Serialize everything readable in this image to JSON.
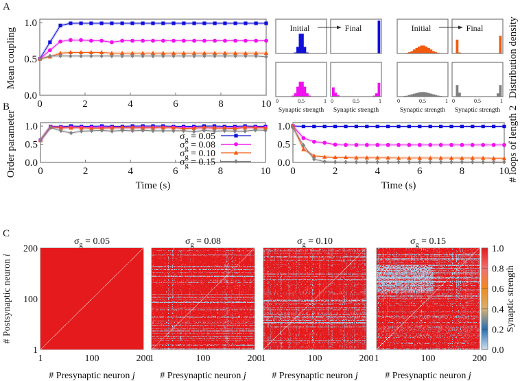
{
  "panel_labels": [
    "A",
    "B",
    "C"
  ],
  "colors": {
    "s005": "#1010d8",
    "s008": "#f010f0",
    "s010": "#f25a10",
    "s015": "#808080"
  },
  "legend": [
    {
      "sym": "σ",
      "sub": "g",
      "val": "= 0.05"
    },
    {
      "sym": "σ",
      "sub": "g",
      "val": "= 0.08"
    },
    {
      "sym": "σ",
      "sub": "g",
      "val": "= 0.10"
    },
    {
      "sym": "σ",
      "sub": "g",
      "val": "= 0.15"
    }
  ],
  "chart_data": [
    {
      "id": "mean-coupling",
      "type": "line",
      "ylabel": "Mean coupling",
      "xlim": [
        0,
        10
      ],
      "ylim": [
        0,
        1
      ],
      "xticks": [
        "0",
        "2",
        "4",
        "6",
        "8",
        "10"
      ],
      "yticks": [
        "0.0",
        "0.5",
        "1.0"
      ],
      "x": [
        0,
        0.45,
        0.91,
        1.36,
        1.82,
        2.27,
        2.73,
        3.18,
        3.64,
        4.09,
        4.55,
        5,
        5.45,
        5.91,
        6.36,
        6.82,
        7.27,
        7.73,
        8.18,
        8.64,
        9.09,
        9.55,
        10
      ],
      "series": [
        {
          "name": "σg = 0.05",
          "color": "#1010d8",
          "marker": "square",
          "values": [
            0.5,
            0.73,
            0.96,
            0.99,
            0.99,
            0.99,
            0.99,
            0.99,
            0.99,
            0.99,
            0.99,
            0.99,
            0.99,
            0.99,
            0.99,
            0.99,
            0.99,
            0.99,
            0.99,
            0.99,
            0.99,
            0.99,
            0.99
          ]
        },
        {
          "name": "σg = 0.08",
          "color": "#f010f0",
          "marker": "circle",
          "values": [
            0.5,
            0.62,
            0.74,
            0.76,
            0.76,
            0.75,
            0.75,
            0.73,
            0.75,
            0.75,
            0.75,
            0.75,
            0.75,
            0.75,
            0.75,
            0.75,
            0.75,
            0.75,
            0.75,
            0.75,
            0.75,
            0.75,
            0.75
          ]
        },
        {
          "name": "σg = 0.10",
          "color": "#f25a10",
          "marker": "triangle",
          "values": [
            0.5,
            0.53,
            0.58,
            0.59,
            0.59,
            0.59,
            0.59,
            0.58,
            0.58,
            0.58,
            0.58,
            0.58,
            0.58,
            0.58,
            0.58,
            0.58,
            0.58,
            0.58,
            0.58,
            0.58,
            0.58,
            0.58,
            0.58
          ]
        },
        {
          "name": "σg = 0.15",
          "color": "#808080",
          "marker": "diamond",
          "values": [
            0.5,
            0.54,
            0.54,
            0.54,
            0.54,
            0.54,
            0.54,
            0.54,
            0.54,
            0.54,
            0.54,
            0.54,
            0.54,
            0.54,
            0.54,
            0.54,
            0.54,
            0.54,
            0.54,
            0.54,
            0.54,
            0.54,
            0.53
          ]
        }
      ]
    },
    {
      "id": "synaptic-distributions",
      "type": "bar",
      "initial_label": "Initial",
      "final_label": "Final",
      "xlabel": "Synaptic strength",
      "ylabel": "Distribution density",
      "xticks": [
        "0",
        "0.5",
        "1"
      ],
      "xlim": [
        0,
        1
      ],
      "bins": 20,
      "histograms": [
        {
          "series": "σg = 0.05",
          "color": "#1010d8",
          "initial": [
            0,
            0,
            0,
            0,
            0,
            0,
            0,
            0.03,
            0.2,
            0.6,
            0.6,
            0.2,
            0.03,
            0,
            0,
            0,
            0,
            0,
            0,
            0
          ],
          "final": [
            0,
            0,
            0,
            0,
            0,
            0,
            0,
            0,
            0,
            0,
            0,
            0,
            0,
            0,
            0,
            0,
            0,
            0,
            0,
            1.0
          ]
        },
        {
          "series": "σg = 0.08",
          "color": "#f010f0",
          "initial": [
            0,
            0,
            0,
            0,
            0,
            0,
            0.03,
            0.1,
            0.3,
            0.45,
            0.45,
            0.3,
            0.1,
            0.03,
            0,
            0,
            0,
            0,
            0,
            0
          ],
          "final": [
            0.28,
            0.12,
            0.04,
            0,
            0,
            0,
            0,
            0,
            0,
            0,
            0,
            0,
            0,
            0,
            0,
            0,
            0,
            0.03,
            0.1,
            0.42
          ]
        },
        {
          "series": "σg = 0.10",
          "color": "#f25a10",
          "initial": [
            0,
            0,
            0.01,
            0.02,
            0.04,
            0.07,
            0.12,
            0.17,
            0.21,
            0.24,
            0.24,
            0.21,
            0.17,
            0.12,
            0.07,
            0.04,
            0.02,
            0.01,
            0,
            0
          ],
          "final": [
            0,
            0.42,
            0.03,
            0,
            0,
            0,
            0,
            0,
            0,
            0,
            0,
            0,
            0,
            0,
            0,
            0,
            0,
            0,
            0,
            0.54
          ]
        },
        {
          "series": "σg = 0.15",
          "color": "#808080",
          "initial": [
            0,
            0.01,
            0.02,
            0.03,
            0.05,
            0.07,
            0.09,
            0.11,
            0.13,
            0.14,
            0.14,
            0.13,
            0.11,
            0.09,
            0.07,
            0.05,
            0.03,
            0.02,
            0.01,
            0
          ],
          "final": [
            0,
            0.35,
            0.12,
            0,
            0,
            0,
            0,
            0,
            0,
            0,
            0,
            0,
            0,
            0,
            0,
            0,
            0,
            0,
            0.1,
            0.35
          ]
        }
      ]
    },
    {
      "id": "order-parameter",
      "type": "line",
      "ylabel": "Order parameter",
      "xlabel": "Time (s)",
      "xlim": [
        0,
        10
      ],
      "ylim": [
        0,
        1
      ],
      "xticks": [
        "0",
        "2",
        "4",
        "6",
        "8",
        "10"
      ],
      "yticks": [
        "0.0",
        "0.5",
        "1.0"
      ],
      "legend_position": "center-right",
      "x": [
        0,
        0.45,
        0.91,
        1.36,
        1.82,
        2.27,
        2.73,
        3.18,
        3.64,
        4.09,
        4.55,
        5,
        5.45,
        5.91,
        6.36,
        6.82,
        7.27,
        7.73,
        8.18,
        8.64,
        9.09,
        9.55,
        10
      ],
      "series": [
        {
          "name": "σg = 0.05",
          "color": "#1010d8",
          "marker": "square",
          "values": [
            0.61,
            0.99,
            0.98,
            1.0,
            0.99,
            0.99,
            1.0,
            0.99,
            0.99,
            1.0,
            1.0,
            1.0,
            1.0,
            0.99,
            0.99,
            0.99,
            1.0,
            1.0,
            0.99,
            0.99,
            1.0,
            0.99,
            0.99
          ]
        },
        {
          "name": "σg = 0.08",
          "color": "#f010f0",
          "marker": "circle",
          "values": [
            0.61,
            0.98,
            0.96,
            0.96,
            0.96,
            0.96,
            0.96,
            0.96,
            0.96,
            0.96,
            0.96,
            0.96,
            0.96,
            0.96,
            0.95,
            0.95,
            0.95,
            0.95,
            0.95,
            0.95,
            0.96,
            0.96,
            0.96
          ]
        },
        {
          "name": "σg = 0.10",
          "color": "#f25a10",
          "marker": "triangle",
          "values": [
            0.61,
            0.97,
            0.95,
            0.95,
            0.95,
            0.94,
            0.94,
            0.95,
            0.95,
            0.95,
            0.95,
            0.95,
            0.96,
            0.96,
            0.93,
            0.94,
            0.96,
            0.94,
            0.94,
            0.93,
            0.96,
            0.95,
            0.95
          ]
        },
        {
          "name": "σg = 0.15",
          "color": "#808080",
          "marker": "diamond",
          "values": [
            0.61,
            0.96,
            0.87,
            0.81,
            0.86,
            0.87,
            0.88,
            0.86,
            0.88,
            0.87,
            0.88,
            0.87,
            0.87,
            0.87,
            0.87,
            0.85,
            0.88,
            0.86,
            0.87,
            0.86,
            0.86,
            0.89,
            0.88
          ]
        }
      ]
    },
    {
      "id": "loops-length-2",
      "type": "line",
      "ylabel": "# loops of length 2",
      "xlabel": "Time (s)",
      "xlim": [
        0,
        10
      ],
      "ylim": [
        0,
        1
      ],
      "xticks": [
        "0",
        "2",
        "4",
        "6",
        "8",
        "10"
      ],
      "yticks": [
        "0.0",
        "0.5",
        "1.0"
      ],
      "x": [
        0,
        0.5,
        1,
        1.5,
        2,
        2.5,
        3,
        3.5,
        4,
        4.5,
        5,
        5.5,
        6,
        6.5,
        7,
        7.5,
        8,
        8.5,
        9,
        9.5,
        10
      ],
      "series": [
        {
          "name": "σg = 0.05",
          "color": "#1010d8",
          "marker": "square",
          "values": [
            1.0,
            0.99,
            0.99,
            0.99,
            0.99,
            0.99,
            0.99,
            0.99,
            0.99,
            0.99,
            0.99,
            0.99,
            0.99,
            0.99,
            0.99,
            0.99,
            0.99,
            0.99,
            0.99,
            0.99,
            0.99
          ]
        },
        {
          "name": "σg = 0.08",
          "color": "#f010f0",
          "marker": "circle",
          "values": [
            1.0,
            0.67,
            0.57,
            0.54,
            0.49,
            0.48,
            0.48,
            0.48,
            0.48,
            0.48,
            0.48,
            0.48,
            0.48,
            0.48,
            0.48,
            0.48,
            0.48,
            0.48,
            0.48,
            0.48,
            0.48
          ]
        },
        {
          "name": "σg = 0.10",
          "color": "#f25a10",
          "marker": "triangle",
          "values": [
            1.0,
            0.36,
            0.18,
            0.15,
            0.14,
            0.14,
            0.13,
            0.13,
            0.13,
            0.13,
            0.12,
            0.12,
            0.12,
            0.12,
            0.12,
            0.12,
            0.12,
            0.12,
            0.12,
            0.11,
            0.11
          ]
        },
        {
          "name": "σg = 0.15",
          "color": "#808080",
          "marker": "diamond",
          "values": [
            0.95,
            0.47,
            0.09,
            0.02,
            0.01,
            0.01,
            0.01,
            0.01,
            0.01,
            0.01,
            0.01,
            0.01,
            0.01,
            0.01,
            0.01,
            0.01,
            0.01,
            0.01,
            0.01,
            0.01,
            0.01
          ]
        }
      ]
    },
    {
      "id": "synaptic-matrices",
      "type": "heatmap",
      "titles": [
        {
          "sym": "σ",
          "sub": "g",
          "val": "= 0.05"
        },
        {
          "sym": "σ",
          "sub": "g",
          "val": "= 0.08"
        },
        {
          "sym": "σ",
          "sub": "g",
          "val": "= 0.10"
        },
        {
          "sym": "σ",
          "sub": "g",
          "val": "= 0.15"
        }
      ],
      "xlabel_text": "# Presynaptic neuron ",
      "xlabel_var": "j",
      "ylabel_text": "# Postsynaptic neuron ",
      "ylabel_var": "i",
      "xticks": [
        "1",
        "100",
        "200"
      ],
      "yticks": [
        "1",
        "100",
        "200"
      ],
      "matrix_size": 200,
      "colorbar": {
        "label": "Synaptic strength",
        "ticks": [
          "0.0",
          "0.2",
          "0.4",
          "0.6",
          "0.8",
          "1.0"
        ],
        "range": [
          0,
          1
        ],
        "stops": [
          "#cfe0ee",
          "#2a6db0",
          "#d6b070",
          "#f08a20",
          "#f07070",
          "#e41a1c"
        ]
      }
    }
  ]
}
